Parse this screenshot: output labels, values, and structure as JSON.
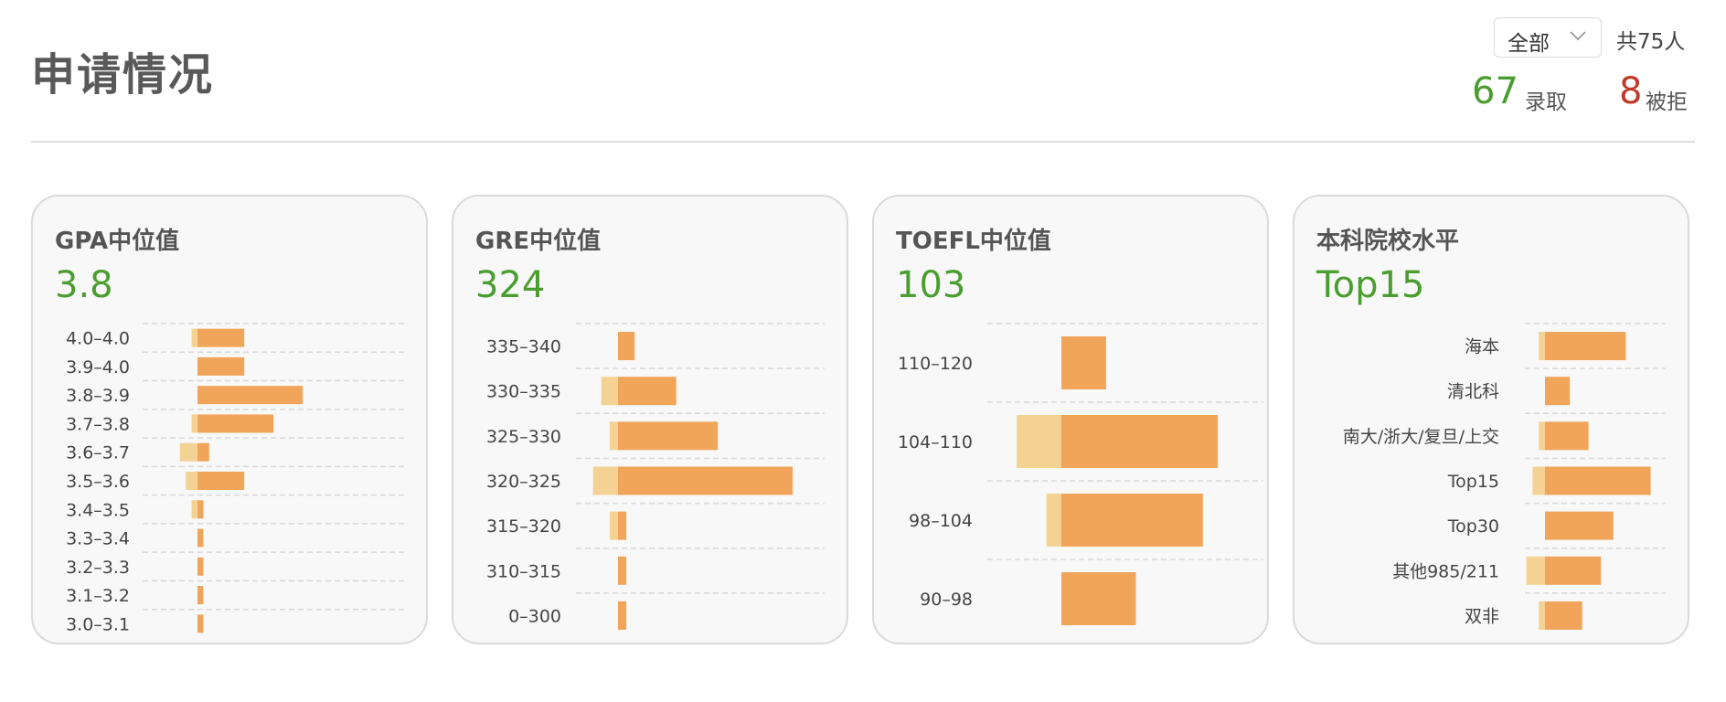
{
  "header": {
    "title": "申请情况",
    "filter_label": "全部",
    "total_label": "共75人",
    "admitted_count": "67",
    "admitted_label": "录取",
    "rejected_count": "8",
    "rejected_label": "被拒"
  },
  "colors": {
    "accent_green": "#4a9e2f",
    "reject_red": "#c0392b",
    "bar_admitted": "#f0a55a",
    "bar_rejected": "#f3d294"
  },
  "chart_data": [
    {
      "type": "bar",
      "title": "GPA中位值",
      "median": "3.8",
      "categories": [
        "4.0–4.0",
        "3.9–4.0",
        "3.8–3.9",
        "3.7–3.8",
        "3.6–3.7",
        "3.5–3.6",
        "3.4–3.5",
        "3.3–3.4",
        "3.2–3.3",
        "3.1–3.2",
        "3.0–3.1"
      ],
      "series": [
        {
          "values": [
            8,
            8,
            18,
            13,
            2,
            8,
            1,
            1,
            1,
            1,
            1
          ]
        },
        {
          "values": [
            1,
            0,
            0,
            1,
            3,
            2,
            1,
            0,
            0,
            0,
            0
          ]
        }
      ]
    },
    {
      "type": "bar",
      "title": "GRE中位值",
      "median": "324",
      "categories": [
        "335–340",
        "330–335",
        "325–330",
        "320–325",
        "315–320",
        "310–315",
        "0–300"
      ],
      "series": [
        {
          "values": [
            2,
            7,
            12,
            21,
            1,
            1,
            1
          ]
        },
        {
          "values": [
            0,
            2,
            1,
            3,
            1,
            0,
            0
          ]
        }
      ]
    },
    {
      "type": "bar",
      "title": "TOEFL中位值",
      "median": "103",
      "categories": [
        "110–120",
        "104–110",
        "98–104",
        "90–98"
      ],
      "series": [
        {
          "values": [
            6,
            21,
            19,
            10
          ]
        },
        {
          "values": [
            0,
            6,
            2,
            0
          ]
        }
      ]
    },
    {
      "type": "bar",
      "title": "本科院校水平",
      "median": "Top15",
      "categories": [
        "海本",
        "清北科",
        "南大/浙大/复旦/上交",
        "Top15",
        "Top30",
        "其他985/211",
        "双非"
      ],
      "series": [
        {
          "values": [
            13,
            4,
            7,
            17,
            11,
            9,
            6
          ]
        },
        {
          "values": [
            1,
            0,
            1,
            2,
            0,
            3,
            1
          ]
        }
      ]
    }
  ]
}
